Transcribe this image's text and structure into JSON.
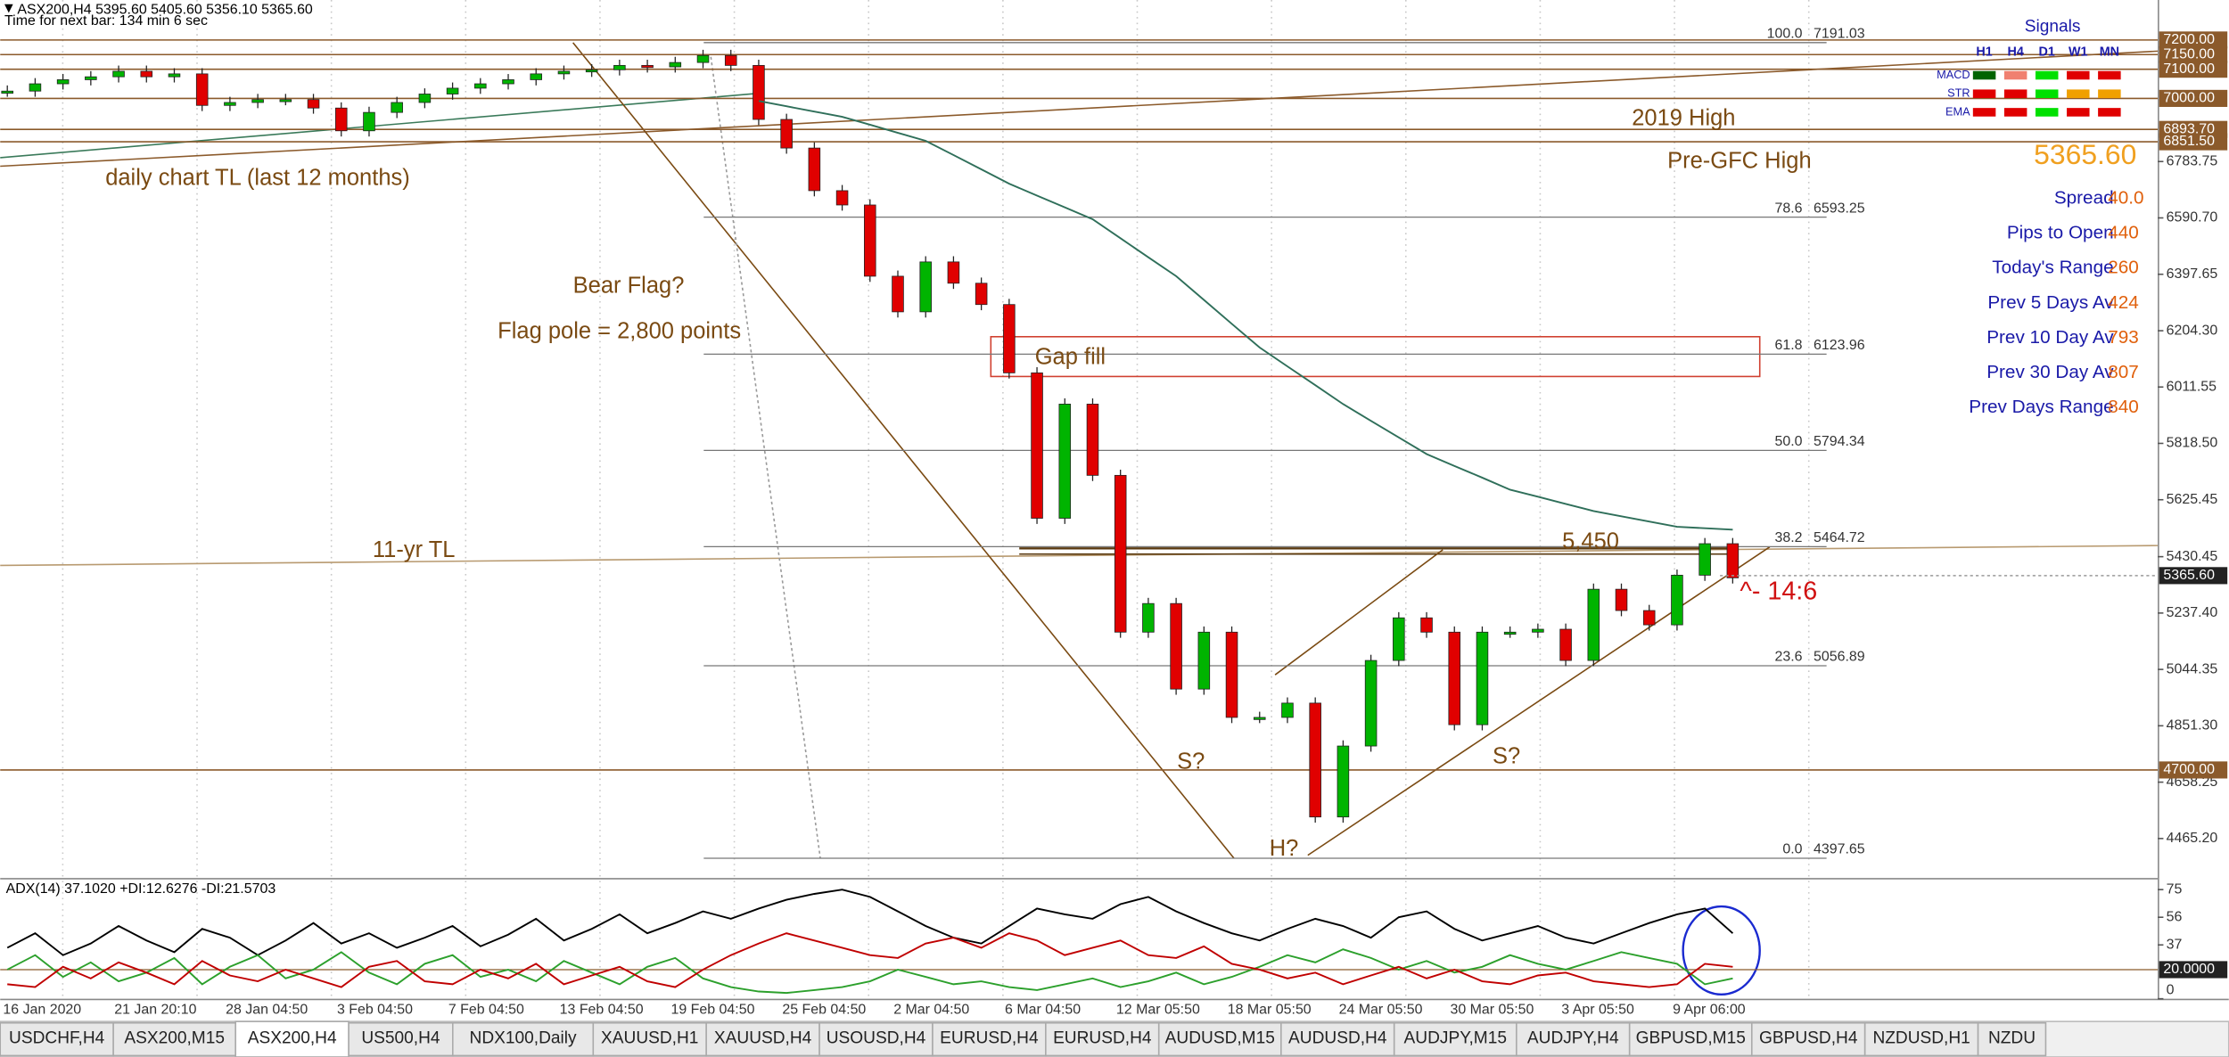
{
  "chart_data": {
    "type": "candlestick",
    "title": "ASX200,H4  5395.60 5405.60 5356.10 5365.60",
    "subtitle": "Time for next bar: 134 min 6 sec",
    "categories": [
      "16 Jan 2020",
      null,
      null,
      null,
      "21 Jan 20:10",
      null,
      null,
      null,
      "28 Jan 04:50",
      null,
      null,
      null,
      "3 Feb 04:50",
      null,
      null,
      null,
      "7 Feb 04:50",
      null,
      null,
      null,
      "13 Feb 04:50",
      null,
      null,
      null,
      "19 Feb 04:50",
      null,
      null,
      null,
      "25 Feb 04:50",
      null,
      null,
      null,
      "2 Mar 04:50",
      null,
      null,
      null,
      "6 Mar 04:50",
      null,
      null,
      null,
      "12 Mar 05:50",
      null,
      null,
      null,
      "18 Mar 05:50",
      null,
      null,
      null,
      "24 Mar 05:50",
      null,
      null,
      null,
      "30 Mar 05:50",
      null,
      null,
      null,
      "3 Apr 05:50",
      null,
      null,
      null,
      "9 Apr 06:00",
      null,
      null
    ],
    "series": [
      {
        "style": "candles",
        "up_color": "#00b400",
        "down_color": "#e00000",
        "values": [
          7025,
          7050,
          7064,
          7074,
          7093,
          7074,
          7084,
          6976,
          6986,
          6996,
          6996,
          6967,
          6889,
          6952,
          6986,
          7015,
          7035,
          7050,
          7064,
          7084,
          7093,
          7098,
          7113,
          7108,
          7123,
          7147,
          7113,
          6928,
          6830,
          6684,
          6635,
          6391,
          6269,
          6440,
          6367,
          6294,
          6060,
          5562,
          5953,
          5709,
          5172,
          5270,
          4977,
          5172,
          4880,
          4880,
          4929,
          4539,
          4782,
          5075,
          5221,
          5172,
          4855,
          5172,
          5172,
          5182,
          5075,
          5319,
          5246,
          5197,
          5367,
          5475,
          5358
        ]
      },
      {
        "style": "line",
        "color": "#2f6f5a",
        "values": [
          null,
          null,
          null,
          null,
          null,
          null,
          null,
          null,
          null,
          null,
          null,
          null,
          null,
          null,
          null,
          null,
          null,
          null,
          null,
          null,
          null,
          null,
          null,
          null,
          null,
          null,
          null,
          6991,
          6973,
          6955,
          6937,
          6910,
          6882,
          6855,
          6806,
          6757,
          6708,
          6667,
          6627,
          6586,
          6521,
          6456,
          6391,
          6310,
          6228,
          6147,
          6082,
          6018,
          5953,
          5896,
          5839,
          5782,
          5741,
          5701,
          5660,
          5636,
          5611,
          5587,
          5569,
          5551,
          5533,
          5528,
          5523
        ]
      }
    ],
    "ylim": [
      4330,
      7337
    ],
    "yticks": [
      6783.75,
      {
        "value": 6590.7,
        "label": "6590.70"
      },
      6397.65,
      {
        "value": 6204.3,
        "label": "6204.30"
      },
      6011.55,
      {
        "value": 5818.5,
        "label": "5818.50"
      },
      5625.45,
      5430.45,
      {
        "value": 5237.4,
        "label": "5237.40"
      },
      5044.35,
      {
        "value": 4851.3,
        "label": "4851.30"
      },
      4658.25,
      {
        "value": 4465.2,
        "label": "4465.20"
      }
    ],
    "levels": [
      {
        "value": 7200,
        "label": "7200.00"
      },
      {
        "value": 7150,
        "label": "7150.00"
      },
      {
        "value": 7100,
        "label": "7100.00"
      },
      {
        "value": 7000,
        "label": "7000.00"
      },
      {
        "value": 6893.7,
        "label": "6893.70"
      },
      {
        "value": 6851.5,
        "label": "6851.50"
      },
      {
        "value": 4700,
        "label": "4700.00"
      }
    ],
    "level_color": "#8b5a2b",
    "current": {
      "value": 5365.6,
      "label": "5365.60"
    },
    "fibonacci": [
      {
        "level": {
          "value": 100,
          "label": "100.0"
        },
        "price": 7191.03
      },
      {
        "level": 78.6,
        "price": 6593.25
      },
      {
        "level": 61.8,
        "price": 6123.96
      },
      {
        "level": {
          "value": 50,
          "label": "50.0"
        },
        "price": 5794.34
      },
      {
        "level": 38.2,
        "price": 5464.72
      },
      {
        "level": 23.6,
        "price": 5056.89
      },
      {
        "level": {
          "value": 0,
          "label": "0.0"
        },
        "price": 4397.65
      }
    ],
    "annotations": [
      "daily chart TL (last 12 months)",
      "Bear Flag?",
      "Flag pole = 2,800 points",
      "Gap fill",
      "11-yr TL",
      "2019 High",
      "Pre-GFC High",
      "5,450",
      "^- 14:6",
      "S?",
      "S?",
      "H?"
    ],
    "adx": {
      "title": "ADX(14) 37.1020 +DI:12.6276 -DI:21.5703",
      "ylim": [
        0,
        82
      ],
      "yticks": [
        75,
        56,
        37,
        0
      ],
      "level": {
        "value": 20,
        "label": "20.0000"
      },
      "series": [
        {
          "color": "#000000",
          "values": [
            35,
            45,
            30,
            38,
            50,
            40,
            32,
            48,
            42,
            30,
            40,
            52,
            38,
            45,
            35,
            42,
            50,
            36,
            44,
            55,
            40,
            48,
            58,
            45,
            52,
            60,
            55,
            62,
            68,
            72,
            75,
            70,
            60,
            50,
            42,
            38,
            50,
            62,
            58,
            55,
            65,
            70,
            60,
            52,
            45,
            40,
            48,
            55,
            50,
            42,
            56,
            60,
            48,
            40,
            45,
            50,
            42,
            38,
            45,
            52,
            58,
            62,
            45
          ]
        },
        {
          "color": "#2ca02c",
          "values": [
            20,
            30,
            15,
            25,
            12,
            18,
            28,
            10,
            22,
            30,
            14,
            20,
            32,
            18,
            10,
            24,
            30,
            15,
            20,
            12,
            26,
            18,
            10,
            22,
            28,
            14,
            8,
            5,
            4,
            6,
            8,
            12,
            20,
            15,
            10,
            12,
            8,
            6,
            10,
            14,
            8,
            12,
            18,
            10,
            15,
            22,
            30,
            25,
            34,
            28,
            20,
            26,
            18,
            22,
            30,
            24,
            20,
            26,
            32,
            28,
            24,
            10,
            14
          ]
        },
        {
          "color": "#c00000",
          "values": [
            10,
            8,
            22,
            14,
            25,
            18,
            10,
            26,
            16,
            12,
            20,
            14,
            8,
            22,
            26,
            12,
            10,
            20,
            14,
            24,
            10,
            16,
            22,
            12,
            8,
            20,
            30,
            38,
            45,
            40,
            35,
            30,
            28,
            38,
            42,
            35,
            45,
            40,
            30,
            35,
            40,
            30,
            28,
            36,
            24,
            20,
            14,
            18,
            10,
            16,
            22,
            14,
            20,
            12,
            10,
            16,
            18,
            12,
            10,
            8,
            10,
            24,
            22
          ]
        }
      ]
    }
  },
  "signals_panel": {
    "title": "Signals",
    "columns": [
      "H1",
      "H4",
      "D1",
      "W1",
      "MN"
    ],
    "rows": [
      {
        "label": "MACD",
        "colors": [
          "#006400",
          "#f08070",
          "#00e000",
          "#e00000",
          "#e00000"
        ]
      },
      {
        "label": "STR",
        "colors": [
          "#e00000",
          "#e00000",
          "#00e000",
          "#f0a000",
          "#f0a000"
        ]
      },
      {
        "label": "EMA",
        "colors": [
          "#e00000",
          "#e00000",
          "#00e000",
          "#e00000",
          "#e00000"
        ]
      }
    ],
    "price": "5365.60",
    "stats": [
      {
        "label": "Spread",
        "value": "40.0"
      },
      {
        "label": "Pips to Open",
        "value": "440"
      },
      {
        "label": "Today's Range",
        "value": "260"
      },
      {
        "label": "Prev 5 Days Av",
        "value": "424"
      },
      {
        "label": "Prev 10 Day Av",
        "value": "793"
      },
      {
        "label": "Prev 30 Day Av",
        "value": "807"
      },
      {
        "label": "Prev Days Range",
        "value": "840"
      }
    ]
  },
  "tabs": {
    "active": 2,
    "items": [
      "USDCHF,H4",
      "ASX200,M15",
      "ASX200,H4",
      "US500,H4",
      "NDX100,Daily",
      "XAUUSD,H1",
      "XAUUSD,H4",
      "USOUSD,H4",
      "EURUSD,H4",
      "EURUSD,H4",
      "AUDUSD,M15",
      "AUDUSD,H4",
      "AUDJPY,M15",
      "AUDJPY,H4",
      "GBPUSD,M15",
      "GBPUSD,H4",
      "NZDUSD,H1",
      "NZDU"
    ]
  }
}
